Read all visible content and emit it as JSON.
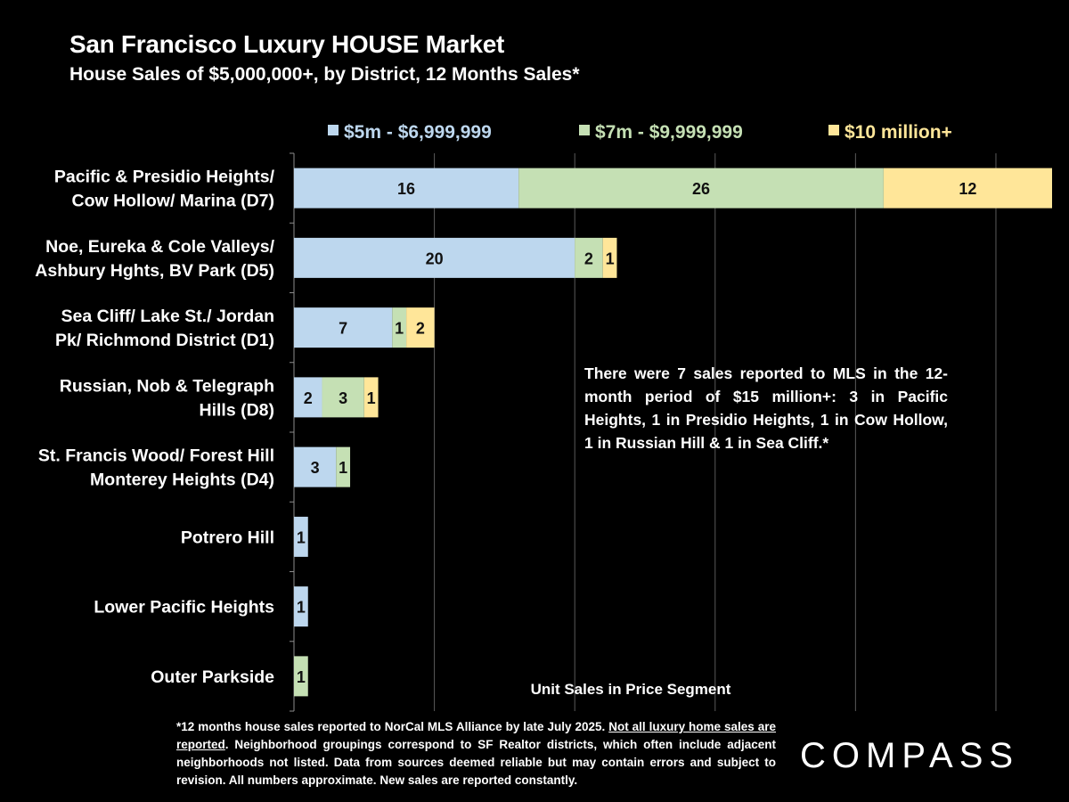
{
  "header": {
    "title": "San Francisco Luxury HOUSE Market",
    "subtitle": "House Sales of $5,000,000+, by District, 12 Months Sales*"
  },
  "chart_data": {
    "type": "bar",
    "orientation": "horizontal",
    "stacked": true,
    "categories": [
      [
        "Pacific & Presidio Heights/",
        "Cow Hollow/ Marina (D7)"
      ],
      [
        "Noe, Eureka & Cole Valleys/",
        "Ashbury Hghts, BV Park (D5)"
      ],
      [
        "Sea Cliff/ Lake St./ Jordan",
        "Pk/ Richmond District (D1)"
      ],
      [
        "Russian, Nob & Telegraph",
        "Hills (D8)"
      ],
      [
        "St. Francis Wood/ Forest Hill",
        "Monterey Heights (D4)"
      ],
      [
        "Potrero Hill"
      ],
      [
        "Lower Pacific Heights"
      ],
      [
        "Outer Parkside"
      ]
    ],
    "series": [
      {
        "name": "$5m - $6,999,999",
        "color": "#bdd7ee",
        "values": [
          16,
          20,
          7,
          2,
          3,
          1,
          1,
          0
        ]
      },
      {
        "name": "$7m - $9,999,999",
        "color": "#c5e0b4",
        "values": [
          26,
          2,
          1,
          3,
          1,
          0,
          0,
          1
        ]
      },
      {
        "name": "$10 million+",
        "color": "#ffe699",
        "values": [
          12,
          1,
          2,
          1,
          0,
          0,
          0,
          0
        ]
      }
    ],
    "xlabel": "Unit Sales in Price Segment",
    "xlim": [
      0,
      54
    ],
    "gridlines": [
      0,
      10,
      20,
      30,
      40,
      50
    ],
    "legend_position": "top",
    "legend_text_colors": [
      "#bdd7ee",
      "#c5e0b4",
      "#ffe699"
    ],
    "grid": true
  },
  "note": "There were 7 sales reported to MLS in the 12-month period of $15 million+: 3 in Pacific Heights, 1 in Presidio Heights, 1 in Cow Hollow, 1 in Russian Hill & 1 in Sea Cliff.*",
  "footnote": {
    "part1": "*12 months house sales reported to NorCal MLS Alliance by late July 2025. ",
    "underlined": "Not all luxury home sales are reported",
    "part2": ". Neighborhood groupings correspond to SF Realtor districts, which often include adjacent neighborhoods not listed. Data from sources deemed reliable but may contain errors and subject to revision. All numbers approximate. New sales are reported constantly."
  },
  "brand": {
    "logo_text": "COMPASS"
  }
}
